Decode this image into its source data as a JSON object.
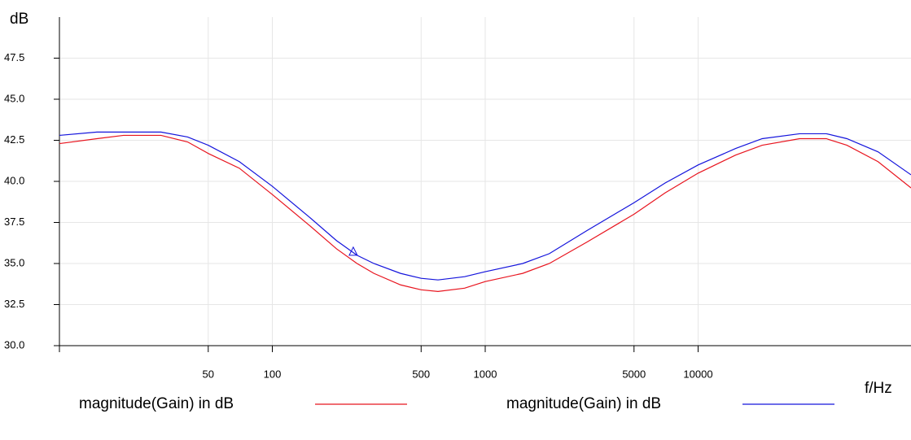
{
  "chart_data": {
    "type": "line",
    "y_label": "dB",
    "x_label": "f/Hz",
    "x": [
      10,
      15,
      20,
      30,
      40,
      50,
      70,
      100,
      150,
      200,
      250,
      300,
      400,
      500,
      600,
      800,
      1000,
      1500,
      2000,
      3000,
      5000,
      7000,
      10000,
      15000,
      20000,
      30000,
      40000,
      50000,
      70000,
      100000
    ],
    "series": [
      {
        "name": "magnitude(Gain) in dB",
        "color": "#e8141e",
        "values": [
          42.3,
          42.6,
          42.8,
          42.8,
          42.4,
          41.7,
          40.8,
          39.2,
          37.3,
          35.9,
          35.0,
          34.4,
          33.7,
          33.4,
          33.3,
          33.5,
          33.9,
          34.4,
          35.0,
          36.3,
          38.0,
          39.3,
          40.5,
          41.6,
          42.2,
          42.6,
          42.6,
          42.2,
          41.2,
          39.6
        ]
      },
      {
        "name": "magnitude(Gain) in dB",
        "color": "#1414dc",
        "values": [
          42.8,
          43.0,
          43.0,
          43.0,
          42.7,
          42.2,
          41.2,
          39.7,
          37.8,
          36.4,
          35.5,
          35.0,
          34.4,
          34.1,
          34.0,
          34.2,
          34.5,
          35.0,
          35.6,
          37.0,
          38.7,
          39.9,
          41.0,
          42.0,
          42.6,
          42.9,
          42.9,
          42.6,
          41.8,
          40.4
        ]
      }
    ],
    "marker": {
      "x": 240,
      "y": 35.7
    },
    "xlim": [
      10,
      100000
    ],
    "x_log": true,
    "xticks": [
      50,
      100,
      500,
      1000,
      5000,
      10000
    ],
    "ylim": [
      30,
      50
    ],
    "yticks": [
      {
        "value": 30,
        "label": "30.0"
      },
      32.5,
      {
        "value": 35,
        "label": "35.0"
      },
      37.5,
      {
        "value": 40,
        "label": "40.0"
      },
      42.5,
      {
        "value": 45,
        "label": "45.0"
      },
      47.5
    ],
    "grid": true
  }
}
